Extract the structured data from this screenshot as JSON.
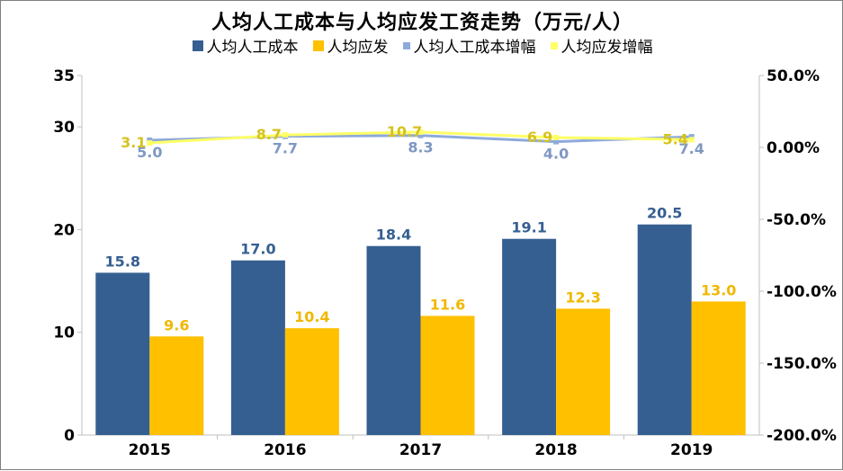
{
  "chart_data": {
    "type": "bar",
    "title": "人均人工成本与人均应发工资走势（万元/人）",
    "categories": [
      "2015",
      "2016",
      "2017",
      "2018",
      "2019"
    ],
    "series": [
      {
        "name": "人均人工成本",
        "kind": "bar",
        "axis": "left",
        "color": "#365f91",
        "values": [
          15.8,
          17.0,
          18.4,
          19.1,
          20.5
        ],
        "labels": [
          "15.8",
          "17.0",
          "18.4",
          "19.1",
          "20.5"
        ]
      },
      {
        "name": "人均应发",
        "kind": "bar",
        "axis": "left",
        "color": "#ffc000",
        "values": [
          9.6,
          10.4,
          11.6,
          12.3,
          13.0
        ],
        "labels": [
          "9.6",
          "10.4",
          "11.6",
          "12.3",
          "13.0"
        ]
      },
      {
        "name": "人均人工成本增幅",
        "kind": "line",
        "axis": "right",
        "color": "#8eaadb",
        "labelColor": "#7f98c2",
        "values": [
          5.0,
          7.7,
          8.3,
          4.0,
          7.4
        ],
        "labels": [
          "5.0",
          "7.7",
          "8.3",
          "4.0",
          "7.4"
        ]
      },
      {
        "name": "人均应发增幅",
        "kind": "line",
        "axis": "right",
        "color": "#ffff66",
        "labelColor": "#d6c21f",
        "values": [
          3.1,
          8.7,
          10.7,
          6.9,
          5.4
        ],
        "labels": [
          "3.1",
          "8.7",
          "10.7",
          "6.9",
          "5.4"
        ]
      }
    ],
    "yLeft": {
      "min": 0,
      "max": 35,
      "ticks": [
        0,
        10,
        20,
        30,
        35
      ],
      "tickLabels": [
        "0",
        "10",
        "20",
        "30",
        "35"
      ]
    },
    "yRight": {
      "min": -200,
      "max": 50,
      "ticks": [
        -200,
        -150,
        -100,
        -50,
        0,
        50
      ],
      "tickLabels": [
        "-200.0%",
        "-150.0%",
        "-100.0%",
        "-50.0%",
        "0.00%",
        "50.0%"
      ]
    },
    "legend": "top-center",
    "grid": false
  }
}
